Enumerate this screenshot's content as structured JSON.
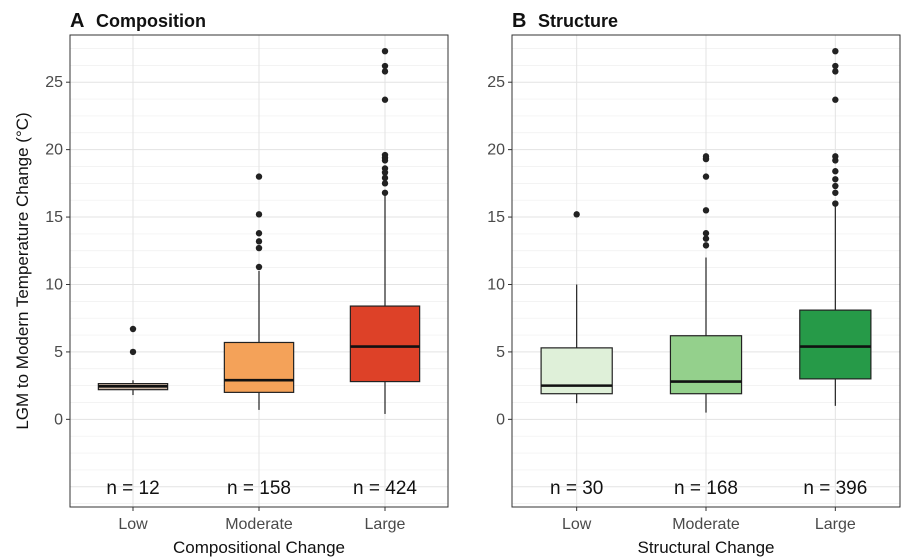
{
  "chart_data": [
    {
      "type": "boxplot",
      "panel_letter": "A",
      "title": "Composition",
      "xlabel": "Compositional Change",
      "ylabel": "LGM to Modern Temperature Change (°C)",
      "ylim": [
        -6.5,
        28.5
      ],
      "yticks": [
        0,
        5,
        10,
        15,
        20,
        25
      ],
      "grid": true,
      "categories": [
        "Low",
        "Moderate",
        "Large"
      ],
      "colors": [
        "#cdb7a5",
        "#f4a259",
        "#dd4128"
      ],
      "boxes": [
        {
          "category": "Low",
          "min": 1.8,
          "q1": 2.2,
          "median": 2.45,
          "q3": 2.65,
          "max": 2.9,
          "outliers": [
            5.0,
            6.7
          ],
          "n_label": "n =  12"
        },
        {
          "category": "Moderate",
          "min": 0.7,
          "q1": 2.0,
          "median": 2.9,
          "q3": 5.7,
          "max": 11.0,
          "outliers": [
            11.3,
            12.7,
            13.2,
            13.8,
            15.2,
            18.0
          ],
          "n_label": "n =  158"
        },
        {
          "category": "Large",
          "min": 0.4,
          "q1": 2.8,
          "median": 5.4,
          "q3": 8.4,
          "max": 16.6,
          "outliers": [
            16.8,
            17.5,
            17.9,
            18.3,
            18.6,
            19.2,
            19.4,
            19.6,
            23.7,
            25.8,
            26.2,
            27.3
          ],
          "n_label": "n =  424"
        }
      ]
    },
    {
      "type": "boxplot",
      "panel_letter": "B",
      "title": "Structure",
      "xlabel": "Structural Change",
      "ylabel": "",
      "ylim": [
        -6.5,
        28.5
      ],
      "yticks": [
        0,
        5,
        10,
        15,
        20,
        25
      ],
      "grid": true,
      "categories": [
        "Low",
        "Moderate",
        "Large"
      ],
      "colors": [
        "#dff0d9",
        "#94d08c",
        "#269a48"
      ],
      "boxes": [
        {
          "category": "Low",
          "min": 1.2,
          "q1": 1.9,
          "median": 2.5,
          "q3": 5.3,
          "max": 10.0,
          "outliers": [
            15.2
          ],
          "n_label": "n =  30"
        },
        {
          "category": "Moderate",
          "min": 0.5,
          "q1": 1.9,
          "median": 2.8,
          "q3": 6.2,
          "max": 12.0,
          "outliers": [
            12.9,
            13.4,
            13.8,
            15.5,
            18.0,
            19.3,
            19.5
          ],
          "n_label": "n =  168"
        },
        {
          "category": "Large",
          "min": 1.0,
          "q1": 3.0,
          "median": 5.4,
          "q3": 8.1,
          "max": 15.8,
          "outliers": [
            16.0,
            16.8,
            17.3,
            17.8,
            18.4,
            19.2,
            19.5,
            23.7,
            25.8,
            26.2,
            27.3
          ],
          "n_label": "n =  396"
        }
      ]
    }
  ]
}
